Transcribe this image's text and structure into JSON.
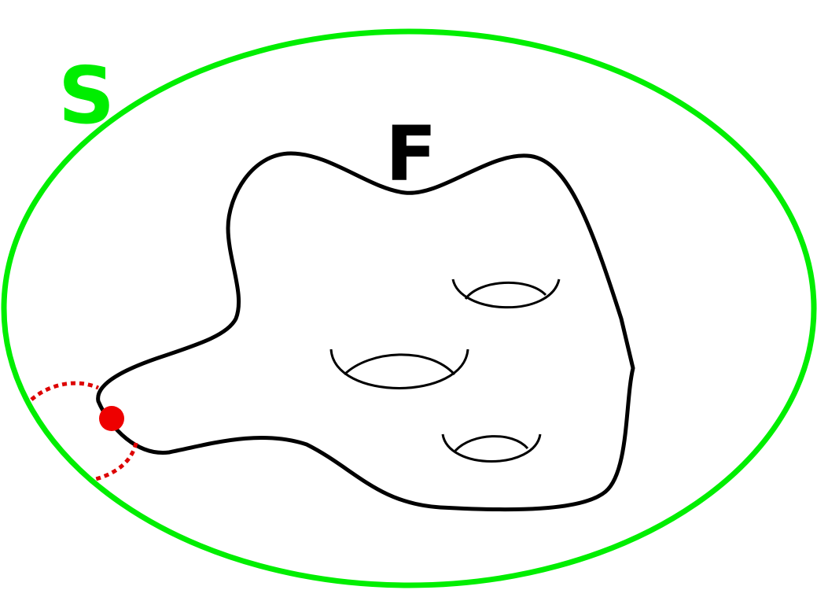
{
  "diagram": {
    "outer_region": {
      "label": "S",
      "color": "#00ee00"
    },
    "surface": {
      "label": "F",
      "color": "#000000"
    },
    "boundary_point": {
      "color": "#ee0000"
    },
    "arc": {
      "color": "#dd0000"
    },
    "handles": {
      "count": 3
    }
  }
}
